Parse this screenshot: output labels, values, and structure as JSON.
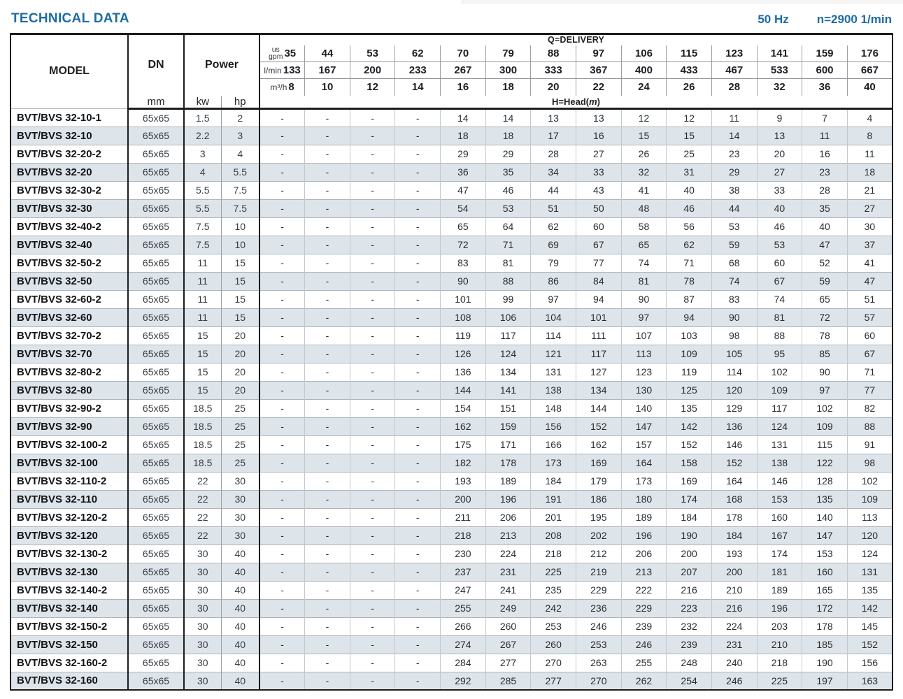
{
  "page": {
    "title": "TECHNICAL DATA",
    "frequency": "50 Hz",
    "speed": "n=2900 1/min"
  },
  "colors": {
    "accent": "#1e6ca3",
    "border": "#1c1c1c",
    "row_stripe": "#dde4ea"
  },
  "table": {
    "headers": {
      "model": "MODEL",
      "dn": "DN",
      "dn_unit": "mm",
      "power": "Power",
      "power_units": [
        "kw",
        "hp"
      ],
      "delivery_label": "Q=DELIVERY",
      "head_label_prefix": "H=Head(",
      "head_label_unit": "m",
      "head_label_suffix": ")",
      "flow_units": [
        "us\ngpm",
        "l/min",
        "m³/h"
      ],
      "gpm": [
        "35",
        "44",
        "53",
        "62",
        "70",
        "79",
        "88",
        "97",
        "106",
        "115",
        "123",
        "141",
        "159",
        "176"
      ],
      "lmin": [
        "133",
        "167",
        "200",
        "233",
        "267",
        "300",
        "333",
        "367",
        "400",
        "433",
        "467",
        "533",
        "600",
        "667"
      ],
      "m3h": [
        "8",
        "10",
        "12",
        "14",
        "16",
        "18",
        "20",
        "22",
        "24",
        "26",
        "28",
        "32",
        "36",
        "40"
      ]
    },
    "rows": [
      {
        "model": "BVT/BVS 32-10-1",
        "dn": "65x65",
        "kw": "1.5",
        "hp": "2",
        "head": [
          "-",
          "-",
          "-",
          "-",
          "14",
          "14",
          "13",
          "13",
          "12",
          "12",
          "11",
          "9",
          "7",
          "4"
        ]
      },
      {
        "model": "BVT/BVS 32-10",
        "dn": "65x65",
        "kw": "2.2",
        "hp": "3",
        "head": [
          "-",
          "-",
          "-",
          "-",
          "18",
          "18",
          "17",
          "16",
          "15",
          "15",
          "14",
          "13",
          "11",
          "8"
        ]
      },
      {
        "model": "BVT/BVS 32-20-2",
        "dn": "65x65",
        "kw": "3",
        "hp": "4",
        "head": [
          "-",
          "-",
          "-",
          "-",
          "29",
          "29",
          "28",
          "27",
          "26",
          "25",
          "23",
          "20",
          "16",
          "11"
        ]
      },
      {
        "model": "BVT/BVS 32-20",
        "dn": "65x65",
        "kw": "4",
        "hp": "5.5",
        "head": [
          "-",
          "-",
          "-",
          "-",
          "36",
          "35",
          "34",
          "33",
          "32",
          "31",
          "29",
          "27",
          "23",
          "18"
        ]
      },
      {
        "model": "BVT/BVS 32-30-2",
        "dn": "65x65",
        "kw": "5.5",
        "hp": "7.5",
        "head": [
          "-",
          "-",
          "-",
          "-",
          "47",
          "46",
          "44",
          "43",
          "41",
          "40",
          "38",
          "33",
          "28",
          "21"
        ]
      },
      {
        "model": "BVT/BVS 32-30",
        "dn": "65x65",
        "kw": "5.5",
        "hp": "7.5",
        "head": [
          "-",
          "-",
          "-",
          "-",
          "54",
          "53",
          "51",
          "50",
          "48",
          "46",
          "44",
          "40",
          "35",
          "27"
        ]
      },
      {
        "model": "BVT/BVS 32-40-2",
        "dn": "65x65",
        "kw": "7.5",
        "hp": "10",
        "head": [
          "-",
          "-",
          "-",
          "-",
          "65",
          "64",
          "62",
          "60",
          "58",
          "56",
          "53",
          "46",
          "40",
          "30"
        ]
      },
      {
        "model": "BVT/BVS 32-40",
        "dn": "65x65",
        "kw": "7.5",
        "hp": "10",
        "head": [
          "-",
          "-",
          "-",
          "-",
          "72",
          "71",
          "69",
          "67",
          "65",
          "62",
          "59",
          "53",
          "47",
          "37"
        ]
      },
      {
        "model": "BVT/BVS 32-50-2",
        "dn": "65x65",
        "kw": "11",
        "hp": "15",
        "head": [
          "-",
          "-",
          "-",
          "-",
          "83",
          "81",
          "79",
          "77",
          "74",
          "71",
          "68",
          "60",
          "52",
          "41"
        ]
      },
      {
        "model": "BVT/BVS 32-50",
        "dn": "65x65",
        "kw": "11",
        "hp": "15",
        "head": [
          "-",
          "-",
          "-",
          "-",
          "90",
          "88",
          "86",
          "84",
          "81",
          "78",
          "74",
          "67",
          "59",
          "47"
        ]
      },
      {
        "model": "BVT/BVS 32-60-2",
        "dn": "65x65",
        "kw": "11",
        "hp": "15",
        "head": [
          "-",
          "-",
          "-",
          "-",
          "101",
          "99",
          "97",
          "94",
          "90",
          "87",
          "83",
          "74",
          "65",
          "51"
        ]
      },
      {
        "model": "BVT/BVS 32-60",
        "dn": "65x65",
        "kw": "11",
        "hp": "15",
        "head": [
          "-",
          "-",
          "-",
          "-",
          "108",
          "106",
          "104",
          "101",
          "97",
          "94",
          "90",
          "81",
          "72",
          "57"
        ]
      },
      {
        "model": "BVT/BVS 32-70-2",
        "dn": "65x65",
        "kw": "15",
        "hp": "20",
        "head": [
          "-",
          "-",
          "-",
          "-",
          "119",
          "117",
          "114",
          "111",
          "107",
          "103",
          "98",
          "88",
          "78",
          "60"
        ]
      },
      {
        "model": "BVT/BVS 32-70",
        "dn": "65x65",
        "kw": "15",
        "hp": "20",
        "head": [
          "-",
          "-",
          "-",
          "-",
          "126",
          "124",
          "121",
          "117",
          "113",
          "109",
          "105",
          "95",
          "85",
          "67"
        ]
      },
      {
        "model": "BVT/BVS 32-80-2",
        "dn": "65x65",
        "kw": "15",
        "hp": "20",
        "head": [
          "-",
          "-",
          "-",
          "-",
          "136",
          "134",
          "131",
          "127",
          "123",
          "119",
          "114",
          "102",
          "90",
          "71"
        ]
      },
      {
        "model": "BVT/BVS 32-80",
        "dn": "65x65",
        "kw": "15",
        "hp": "20",
        "head": [
          "-",
          "-",
          "-",
          "-",
          "144",
          "141",
          "138",
          "134",
          "130",
          "125",
          "120",
          "109",
          "97",
          "77"
        ]
      },
      {
        "model": "BVT/BVS 32-90-2",
        "dn": "65x65",
        "kw": "18.5",
        "hp": "25",
        "head": [
          "-",
          "-",
          "-",
          "-",
          "154",
          "151",
          "148",
          "144",
          "140",
          "135",
          "129",
          "117",
          "102",
          "82"
        ]
      },
      {
        "model": "BVT/BVS 32-90",
        "dn": "65x65",
        "kw": "18.5",
        "hp": "25",
        "head": [
          "-",
          "-",
          "-",
          "-",
          "162",
          "159",
          "156",
          "152",
          "147",
          "142",
          "136",
          "124",
          "109",
          "88"
        ]
      },
      {
        "model": "BVT/BVS 32-100-2",
        "dn": "65x65",
        "kw": "18.5",
        "hp": "25",
        "head": [
          "-",
          "-",
          "-",
          "-",
          "175",
          "171",
          "166",
          "162",
          "157",
          "152",
          "146",
          "131",
          "115",
          "91"
        ]
      },
      {
        "model": "BVT/BVS 32-100",
        "dn": "65x65",
        "kw": "18.5",
        "hp": "25",
        "head": [
          "-",
          "-",
          "-",
          "-",
          "182",
          "178",
          "173",
          "169",
          "164",
          "158",
          "152",
          "138",
          "122",
          "98"
        ]
      },
      {
        "model": "BVT/BVS 32-110-2",
        "dn": "65x65",
        "kw": "22",
        "hp": "30",
        "head": [
          "-",
          "-",
          "-",
          "-",
          "193",
          "189",
          "184",
          "179",
          "173",
          "169",
          "164",
          "146",
          "128",
          "102"
        ]
      },
      {
        "model": "BVT/BVS 32-110",
        "dn": "65x65",
        "kw": "22",
        "hp": "30",
        "head": [
          "-",
          "-",
          "-",
          "-",
          "200",
          "196",
          "191",
          "186",
          "180",
          "174",
          "168",
          "153",
          "135",
          "109"
        ]
      },
      {
        "model": "BVT/BVS 32-120-2",
        "dn": "65x65",
        "kw": "22",
        "hp": "30",
        "head": [
          "-",
          "-",
          "-",
          "-",
          "211",
          "206",
          "201",
          "195",
          "189",
          "184",
          "178",
          "160",
          "140",
          "113"
        ]
      },
      {
        "model": "BVT/BVS 32-120",
        "dn": "65x65",
        "kw": "22",
        "hp": "30",
        "head": [
          "-",
          "-",
          "-",
          "-",
          "218",
          "213",
          "208",
          "202",
          "196",
          "190",
          "184",
          "167",
          "147",
          "120"
        ]
      },
      {
        "model": "BVT/BVS 32-130-2",
        "dn": "65x65",
        "kw": "30",
        "hp": "40",
        "head": [
          "-",
          "-",
          "-",
          "-",
          "230",
          "224",
          "218",
          "212",
          "206",
          "200",
          "193",
          "174",
          "153",
          "124"
        ]
      },
      {
        "model": "BVT/BVS 32-130",
        "dn": "65x65",
        "kw": "30",
        "hp": "40",
        "head": [
          "-",
          "-",
          "-",
          "-",
          "237",
          "231",
          "225",
          "219",
          "213",
          "207",
          "200",
          "181",
          "160",
          "131"
        ]
      },
      {
        "model": "BVT/BVS 32-140-2",
        "dn": "65x65",
        "kw": "30",
        "hp": "40",
        "head": [
          "-",
          "-",
          "-",
          "-",
          "247",
          "241",
          "235",
          "229",
          "222",
          "216",
          "210",
          "189",
          "165",
          "135"
        ]
      },
      {
        "model": "BVT/BVS 32-140",
        "dn": "65x65",
        "kw": "30",
        "hp": "40",
        "head": [
          "-",
          "-",
          "-",
          "-",
          "255",
          "249",
          "242",
          "236",
          "229",
          "223",
          "216",
          "196",
          "172",
          "142"
        ]
      },
      {
        "model": "BVT/BVS 32-150-2",
        "dn": "65x65",
        "kw": "30",
        "hp": "40",
        "head": [
          "-",
          "-",
          "-",
          "-",
          "266",
          "260",
          "253",
          "246",
          "239",
          "232",
          "224",
          "203",
          "178",
          "145"
        ]
      },
      {
        "model": "BVT/BVS 32-150",
        "dn": "65x65",
        "kw": "30",
        "hp": "40",
        "head": [
          "-",
          "-",
          "-",
          "-",
          "274",
          "267",
          "260",
          "253",
          "246",
          "239",
          "231",
          "210",
          "185",
          "152"
        ]
      },
      {
        "model": "BVT/BVS 32-160-2",
        "dn": "65x65",
        "kw": "30",
        "hp": "40",
        "head": [
          "-",
          "-",
          "-",
          "-",
          "284",
          "277",
          "270",
          "263",
          "255",
          "248",
          "240",
          "218",
          "190",
          "156"
        ]
      },
      {
        "model": "BVT/BVS 32-160",
        "dn": "65x65",
        "kw": "30",
        "hp": "40",
        "head": [
          "-",
          "-",
          "-",
          "-",
          "292",
          "285",
          "277",
          "270",
          "262",
          "254",
          "246",
          "225",
          "197",
          "163"
        ]
      }
    ]
  }
}
